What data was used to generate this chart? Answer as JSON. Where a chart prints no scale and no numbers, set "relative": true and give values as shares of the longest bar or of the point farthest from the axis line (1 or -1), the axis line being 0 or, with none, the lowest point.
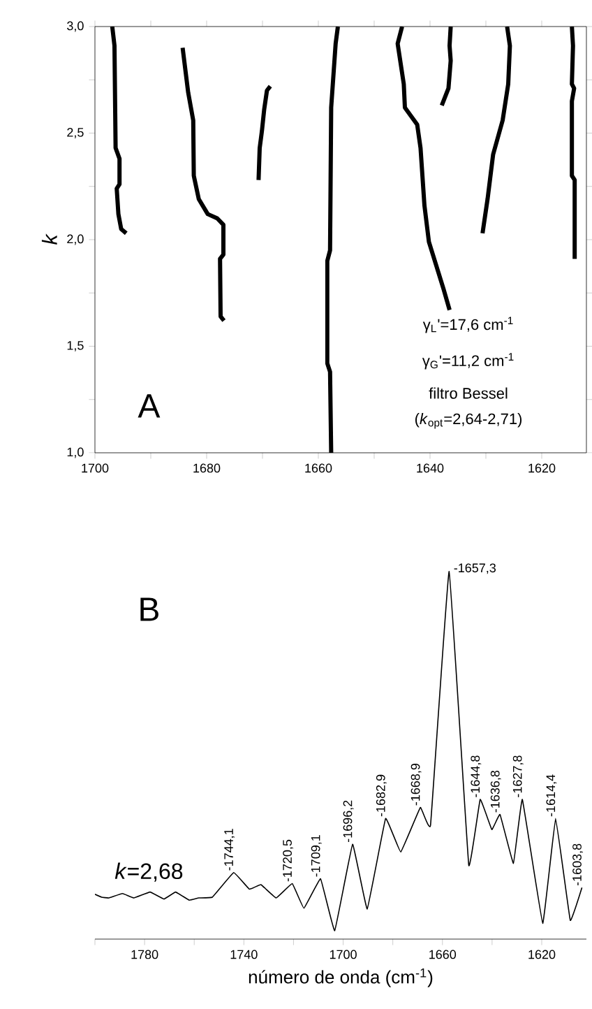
{
  "chart_data": [
    {
      "type": "line",
      "ylabel": "k",
      "xlim": [
        1700,
        1612
      ],
      "ylim": [
        1,
        3
      ],
      "xticks": [
        1700,
        1680,
        1660,
        1640,
        1620,
        {
          "value": 1690,
          "label": null
        },
        {
          "value": 1670,
          "label": null
        },
        {
          "value": 1650,
          "label": null
        },
        {
          "value": 1630,
          "label": null
        }
      ],
      "yticks": [
        {
          "value": 1,
          "label": "1,0"
        },
        {
          "value": 1.5,
          "label": "1,5"
        },
        {
          "value": 2,
          "label": "2,0"
        },
        {
          "value": 2.5,
          "label": "2,5"
        },
        {
          "value": 3,
          "label": "3,0"
        },
        {
          "value": 1.25,
          "label": null
        },
        {
          "value": 1.75,
          "label": null
        },
        {
          "value": 2.25,
          "label": null
        },
        {
          "value": 2.75,
          "label": null
        }
      ],
      "annotations": [
        "A",
        "γ$_{L}$'=17,6 cm$^{-1}$",
        "γ$_{G}$'=11,2 cm$^{-1}$",
        "filtro Bessel",
        "(*k*$_{opt}$=2,64-2,71)"
      ],
      "series": [
        {
          "color": "#000000",
          "x": [
            1696.9,
            1696.5,
            1696.3,
            1695.6,
            1695.6,
            1696.1,
            1695.8,
            1695.3,
            1694.4
          ],
          "values": [
            3.0,
            2.91,
            2.43,
            2.38,
            2.26,
            2.24,
            2.12,
            2.05,
            2.03
          ]
        },
        {
          "color": "#000000",
          "x": [
            1684.3,
            1683.3,
            1682.4,
            1682.3,
            1681.4,
            1679.8,
            1678.1,
            1677.0,
            1677.0,
            1677.6,
            1677.5,
            1676.9
          ],
          "values": [
            2.9,
            2.69,
            2.56,
            2.3,
            2.19,
            2.12,
            2.1,
            2.07,
            1.93,
            1.91,
            1.64,
            1.62
          ]
        },
        {
          "color": "#000000",
          "x": [
            1670.7,
            1670.5,
            1670.1,
            1669.7,
            1669.2,
            1668.6
          ],
          "values": [
            2.28,
            2.43,
            2.51,
            2.61,
            2.7,
            2.72
          ]
        },
        {
          "color": "#000000",
          "x": [
            1656.5,
            1656.9,
            1657.7,
            1657.9,
            1658.4,
            1658.4,
            1657.9,
            1657.7
          ],
          "values": [
            3.0,
            2.92,
            2.62,
            1.95,
            1.9,
            1.42,
            1.38,
            1.0
          ]
        },
        {
          "color": "#000000",
          "x": [
            1645.0,
            1645.8,
            1644.7,
            1644.5,
            1642.3,
            1641.7,
            1641.0,
            1640.2,
            1637.6,
            1636.5
          ],
          "values": [
            3.0,
            2.92,
            2.73,
            2.62,
            2.54,
            2.43,
            2.16,
            1.99,
            1.77,
            1.67
          ]
        },
        {
          "color": "#000000",
          "x": [
            1636.3,
            1636.5,
            1636.3,
            1636.7,
            1637.9
          ],
          "values": [
            3.0,
            2.91,
            2.84,
            2.71,
            2.63
          ]
        },
        {
          "color": "#000000",
          "x": [
            1626.2,
            1625.7,
            1626.0,
            1627.0,
            1628.7,
            1629.7,
            1630.6
          ],
          "values": [
            3.0,
            2.91,
            2.73,
            2.56,
            2.4,
            2.19,
            2.03
          ]
        },
        {
          "color": "#000000",
          "x": [
            1614.6,
            1614.4,
            1614.6,
            1614.2,
            1614.6,
            1614.6,
            1614.1,
            1614.1
          ],
          "values": [
            3.0,
            2.91,
            2.73,
            2.71,
            2.65,
            2.3,
            2.28,
            1.91
          ]
        }
      ]
    },
    {
      "type": "line",
      "relative": true,
      "xlabel": "número de onda (cm$^{-1}$)",
      "xlim": [
        1800,
        1602
      ],
      "color": "#000000",
      "xticks": [
        1780,
        1740,
        1700,
        1660,
        1620,
        {
          "value": 1800,
          "label": null
        },
        {
          "value": 1760,
          "label": null
        },
        {
          "value": 1720,
          "label": null
        },
        {
          "value": 1680,
          "label": null
        },
        {
          "value": 1640,
          "label": null
        }
      ],
      "x": [
        1800,
        1797.3,
        1794.5,
        1788.9,
        1784.3,
        1777.8,
        1772.2,
        1767.5,
        1762.0,
        1758.2,
        1752.7,
        1744.1,
        1737.8,
        1733.1,
        1727.0,
        1720.5,
        1715.8,
        1709.1,
        1703.4,
        1696.2,
        1690.3,
        1682.9,
        1676.8,
        1668.9,
        1664.8,
        1657.3,
        1649.4,
        1644.8,
        1640.1,
        1636.8,
        1631.4,
        1627.8,
        1619.6,
        1614.4,
        1608.5,
        1603.8
      ],
      "values": [
        0.122,
        0.114,
        0.112,
        0.124,
        0.112,
        0.128,
        0.109,
        0.128,
        0.106,
        0.112,
        0.114,
        0.181,
        0.136,
        0.148,
        0.112,
        0.151,
        0.084,
        0.164,
        0.023,
        0.258,
        0.082,
        0.328,
        0.237,
        0.358,
        0.31,
        1.0,
        0.201,
        0.38,
        0.298,
        0.339,
        0.206,
        0.38,
        0.043,
        0.328,
        0.051,
        0.14
      ],
      "annotations": [
        "B",
        "*k*=2,68",
        {
          "text": "-1744,1",
          "x": 1744.1,
          "y": 0.181
        },
        {
          "text": "-1720,5",
          "x": 1720.5,
          "y": 0.151
        },
        {
          "text": "-1709,1",
          "x": 1709.1,
          "y": 0.164
        },
        {
          "text": "-1696,2",
          "x": 1696.2,
          "y": 0.258
        },
        {
          "text": "-1682,9",
          "x": 1682.9,
          "y": 0.328
        },
        {
          "text": "-1668,9",
          "x": 1668.9,
          "y": 0.358
        },
        {
          "text": "-1657,3",
          "x": 1657.3,
          "y": 1.0
        },
        {
          "text": "-1644,8",
          "x": 1644.8,
          "y": 0.38
        },
        {
          "text": "-1636,8",
          "x": 1636.8,
          "y": 0.339
        },
        {
          "text": "-1627,8",
          "x": 1627.8,
          "y": 0.38
        },
        {
          "text": "-1614,4",
          "x": 1614.4,
          "y": 0.328
        },
        {
          "text": "-1603,8",
          "x": 1603.8,
          "y": 0.14
        }
      ]
    }
  ]
}
